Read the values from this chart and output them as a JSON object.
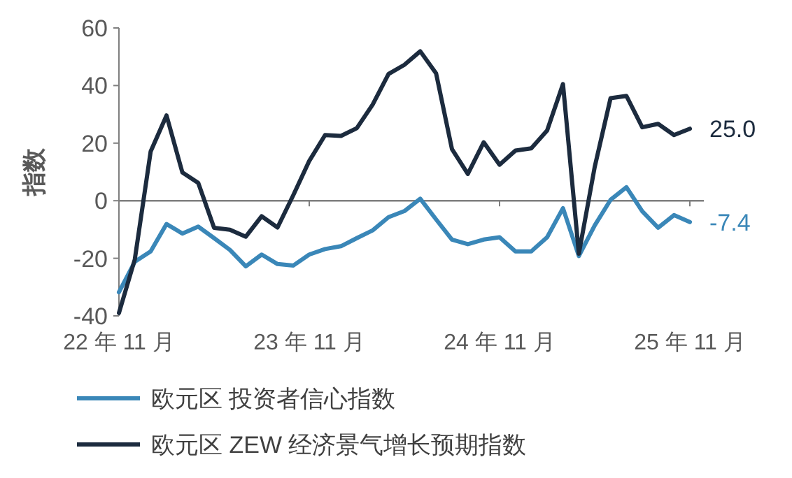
{
  "chart_data": {
    "type": "line",
    "ylabel": "指数",
    "categories": [
      "22 年 11 月",
      null,
      null,
      null,
      null,
      null,
      null,
      null,
      null,
      null,
      null,
      null,
      "23 年 11 月",
      null,
      null,
      null,
      null,
      null,
      null,
      null,
      null,
      null,
      null,
      null,
      "24 年 11 月",
      null,
      null,
      null,
      null,
      null,
      null,
      null,
      null,
      null,
      null,
      null,
      "25 年 11 月"
    ],
    "series": [
      {
        "name": "欧元区 投资者信心指数",
        "color": "#3a87b8",
        "values": [
          -31.8,
          -21.2,
          -17.6,
          -8.1,
          -11.4,
          -9.0,
          -13.0,
          -17.1,
          -22.8,
          -18.7,
          -22.0,
          -22.5,
          -18.7,
          -16.8,
          -15.8,
          -13.0,
          -10.3,
          -5.7,
          -3.6,
          0.7,
          -6.5,
          -13.5,
          -15.1,
          -13.5,
          -12.7,
          -17.6,
          -17.6,
          -12.7,
          -2.6,
          -19.2,
          -8.6,
          0.3,
          4.7,
          -3.7,
          -9.4,
          -5.0,
          -7.4
        ]
      },
      {
        "name": "欧元区 ZEW 经济景气增长预期指数",
        "color": "#1c2b3e",
        "values": [
          -39.0,
          -20.4,
          17.1,
          29.6,
          9.8,
          6.2,
          -9.4,
          -10.1,
          -12.5,
          -5.4,
          -9.3,
          2.0,
          13.8,
          22.8,
          22.5,
          25.2,
          33.4,
          44.0,
          47.2,
          51.9,
          44.2,
          17.9,
          9.3,
          20.3,
          12.5,
          17.4,
          18.2,
          24.4,
          40.5,
          -18.4,
          11.7,
          35.6,
          36.4,
          25.5,
          26.7,
          22.8,
          25.0
        ]
      }
    ],
    "ylim": [
      -40,
      60
    ],
    "yticks": [
      -40,
      -20,
      0,
      20,
      40,
      60
    ],
    "annotations": [
      {
        "text": "25.0",
        "x": "25 年 11 月",
        "y": 25.0
      },
      {
        "text": "-7.4",
        "x": "25 年 11 月",
        "y": -7.4
      }
    ],
    "ref_lines": [
      {
        "axis": "y",
        "value": 0,
        "color": "#7f7f7f"
      }
    ],
    "grid": false,
    "legend": "bottom",
    "marker": "none",
    "line_style": "solid"
  }
}
